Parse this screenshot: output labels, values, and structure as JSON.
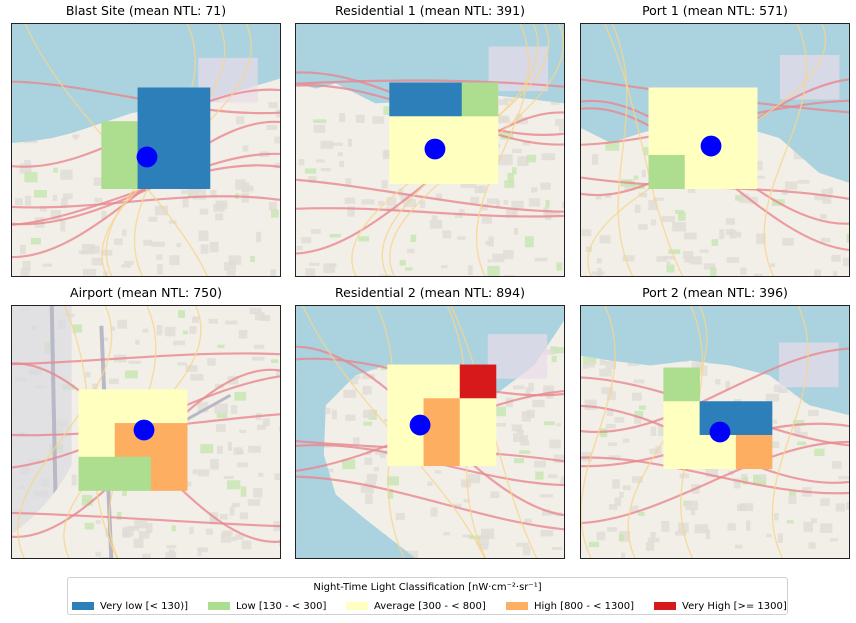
{
  "panels": [
    {
      "title": "Blast Site (mean NTL: 71)",
      "map_style": "port-north"
    },
    {
      "title": "Residential 1 (mean NTL: 391)",
      "map_style": "port-north"
    },
    {
      "title": "Port 1 (mean NTL: 571)",
      "map_style": "port-north-east"
    },
    {
      "title": "Airport (mean NTL: 750)",
      "map_style": "airport"
    },
    {
      "title": "Residential 2 (mean NTL: 894)",
      "map_style": "peninsula"
    },
    {
      "title": "Port 2 (mean NTL: 396)",
      "map_style": "port-north-east"
    }
  ],
  "ntl_grids": [
    {
      "cells": [
        {
          "col": 0,
          "row": 0,
          "cls": "none"
        },
        {
          "col": 1,
          "row": 0,
          "cls": "very_low"
        },
        {
          "col": 2,
          "row": 0,
          "cls": "very_low"
        },
        {
          "col": 0,
          "row": 1,
          "cls": "low"
        },
        {
          "col": 1,
          "row": 1,
          "cls": "very_low"
        },
        {
          "col": 2,
          "row": 1,
          "cls": "very_low"
        },
        {
          "col": 0,
          "row": 2,
          "cls": "low"
        },
        {
          "col": 1,
          "row": 2,
          "cls": "very_low"
        },
        {
          "col": 2,
          "row": 2,
          "cls": "very_low"
        }
      ]
    },
    {
      "cells": [
        {
          "col": 0,
          "row": 0,
          "cls": "very_low"
        },
        {
          "col": 1,
          "row": 0,
          "cls": "very_low"
        },
        {
          "col": 2,
          "row": 0,
          "cls": "low"
        },
        {
          "col": 0,
          "row": 1,
          "cls": "average"
        },
        {
          "col": 1,
          "row": 1,
          "cls": "average"
        },
        {
          "col": 2,
          "row": 1,
          "cls": "average"
        },
        {
          "col": 0,
          "row": 2,
          "cls": "average"
        },
        {
          "col": 1,
          "row": 2,
          "cls": "average"
        },
        {
          "col": 2,
          "row": 2,
          "cls": "average"
        }
      ]
    },
    {
      "cells": [
        {
          "col": 0,
          "row": 0,
          "cls": "average"
        },
        {
          "col": 1,
          "row": 0,
          "cls": "average"
        },
        {
          "col": 2,
          "row": 0,
          "cls": "average"
        },
        {
          "col": 0,
          "row": 1,
          "cls": "average"
        },
        {
          "col": 1,
          "row": 1,
          "cls": "average"
        },
        {
          "col": 2,
          "row": 1,
          "cls": "average"
        },
        {
          "col": 0,
          "row": 2,
          "cls": "low"
        },
        {
          "col": 1,
          "row": 2,
          "cls": "average"
        },
        {
          "col": 2,
          "row": 2,
          "cls": "average"
        }
      ]
    },
    {
      "cells": [
        {
          "col": 0,
          "row": 0,
          "cls": "average"
        },
        {
          "col": 1,
          "row": 0,
          "cls": "average"
        },
        {
          "col": 2,
          "row": 0,
          "cls": "average"
        },
        {
          "col": 0,
          "row": 1,
          "cls": "average"
        },
        {
          "col": 1,
          "row": 1,
          "cls": "high"
        },
        {
          "col": 2,
          "row": 1,
          "cls": "high"
        },
        {
          "col": 0,
          "row": 2,
          "cls": "low"
        },
        {
          "col": 1,
          "row": 2,
          "cls": "low"
        },
        {
          "col": 2,
          "row": 2,
          "cls": "high"
        }
      ]
    },
    {
      "cells": [
        {
          "col": 0,
          "row": 0,
          "cls": "average"
        },
        {
          "col": 1,
          "row": 0,
          "cls": "average"
        },
        {
          "col": 2,
          "row": 0,
          "cls": "very_high"
        },
        {
          "col": 0,
          "row": 1,
          "cls": "average"
        },
        {
          "col": 1,
          "row": 1,
          "cls": "high"
        },
        {
          "col": 2,
          "row": 1,
          "cls": "average"
        },
        {
          "col": 0,
          "row": 2,
          "cls": "average"
        },
        {
          "col": 1,
          "row": 2,
          "cls": "high"
        },
        {
          "col": 2,
          "row": 2,
          "cls": "average"
        }
      ]
    },
    {
      "cells": [
        {
          "col": 0,
          "row": 0,
          "cls": "low"
        },
        {
          "col": 1,
          "row": 0,
          "cls": "none"
        },
        {
          "col": 2,
          "row": 0,
          "cls": "none"
        },
        {
          "col": 0,
          "row": 1,
          "cls": "average"
        },
        {
          "col": 1,
          "row": 1,
          "cls": "very_low"
        },
        {
          "col": 2,
          "row": 1,
          "cls": "very_low"
        },
        {
          "col": 0,
          "row": 2,
          "cls": "average"
        },
        {
          "col": 1,
          "row": 2,
          "cls": "average"
        },
        {
          "col": 2,
          "row": 2,
          "cls": "high"
        }
      ]
    }
  ],
  "legend": {
    "title": "Night-Time Light Classification [nW·cm⁻²·sr⁻¹]",
    "items": [
      {
        "key": "very_low",
        "label": "Very low [< 130)]",
        "color": "#2c7fb8"
      },
      {
        "key": "low",
        "label": "Low [130 - < 300]",
        "color": "#addd8e"
      },
      {
        "key": "average",
        "label": "Average [300 - < 800]",
        "color": "#ffffbf"
      },
      {
        "key": "high",
        "label": "High [800 - < 1300]",
        "color": "#fdae61"
      },
      {
        "key": "very_high",
        "label": "Very High [>= 1300]",
        "color": "#d7191c"
      }
    ]
  },
  "marker_color": "#0000ff",
  "colors": {
    "sea": "#aad3df",
    "land": "#f2efe9",
    "urban": "#e0dcd6",
    "road_major": "#e8878f",
    "road_minor": "#f7d48c",
    "industrial": "#ebdbe8",
    "airport": "#dadae0",
    "park": "#c8e6b4"
  }
}
